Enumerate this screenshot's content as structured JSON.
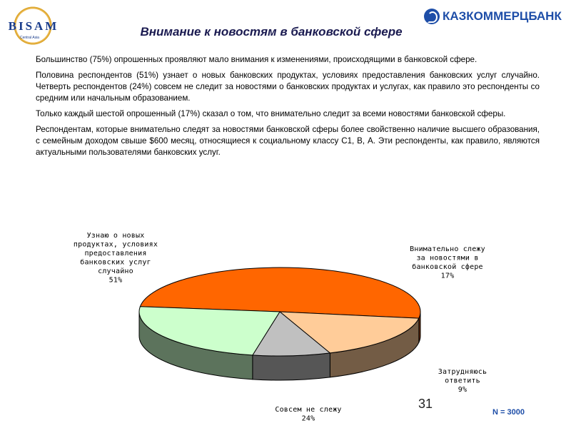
{
  "logos": {
    "left_text": "BISAM",
    "left_sub": "Central Asia",
    "right_text": "КАЗКОММЕРЦБАНК"
  },
  "header": {
    "title": "Внимание к новостям в банковской сфере"
  },
  "paragraphs": [
    "Большинство (75%) опрошенных проявляют мало внимания к изменениями, происходящими в банковской сфере.",
    "Половина респондентов (51%) узнает о новых банковских продуктах, условиях предоставления банковских услуг случайно. Четверть респондентов (24%) совсем не следит за новостями о банковских продуктах и услугах, как правило это респонденты со средним или начальным образованием.",
    "Только каждый шестой опрошенный (17%) сказал о том, что внимательно следит за всеми новостями банковской сферы.",
    "Респондентам, которые внимательно следят за новостями банковской сферы более свойственно наличие высшего образования, с семейным доходом свыше $600 месяц, относящиеся к социальному классу С1, В, А. Эти респонденты, как правило, являются актуальными пользователями банковских услуг."
  ],
  "footer": {
    "page_number": "31",
    "sample": "N = 3000"
  },
  "chart_data": {
    "type": "pie",
    "style": "3d",
    "title": "",
    "slices": [
      {
        "label_lines": [
          "Узнаю о новых",
          "продуктах, условиях",
          "предоставления",
          "банковских услуг",
          "случайно"
        ],
        "value_label": "51%",
        "value": 51,
        "color": "#ff6600"
      },
      {
        "label_lines": [
          "Внимательно слежу",
          "за новостями в",
          "банковской сфере"
        ],
        "value_label": "17%",
        "value": 17,
        "color": "#ffcc99"
      },
      {
        "label_lines": [
          "Затрудняюсь",
          "ответить"
        ],
        "value_label": "9%",
        "value": 9,
        "color": "#c0c0c0"
      },
      {
        "label_lines": [
          "Совсем не слежу"
        ],
        "value_label": "24%",
        "value": 24,
        "color": "#ccffcc"
      }
    ]
  }
}
